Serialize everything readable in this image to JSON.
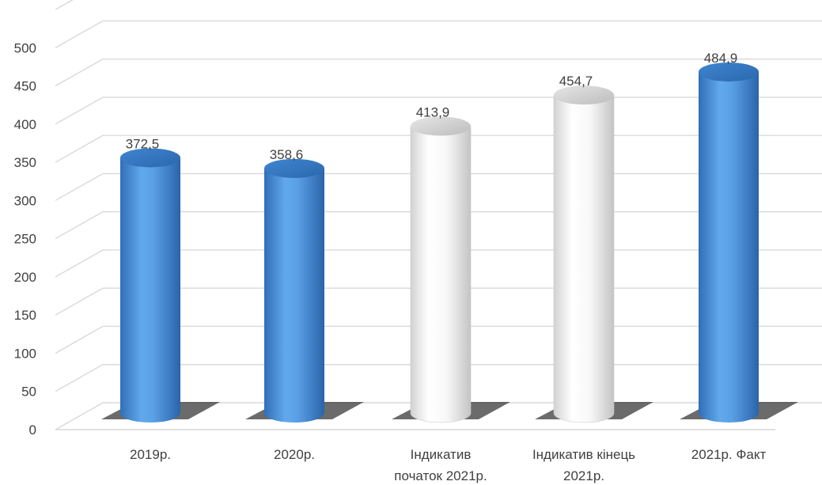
{
  "chart_data": {
    "type": "bar",
    "style": "3d-cylinder",
    "categories": [
      [
        "2019р."
      ],
      [
        "2020р."
      ],
      [
        "Індикатив",
        "початок 2021р."
      ],
      [
        "Індикатив кінець",
        "2021р."
      ],
      [
        "2021р. Факт"
      ]
    ],
    "values": [
      372.5,
      358.6,
      413.9,
      454.7,
      484.9
    ],
    "value_labels": [
      "372,5",
      "358,6",
      "413,9",
      "454,7",
      "484,9"
    ],
    "bar_colors": [
      "#4a8fd8",
      "#4a8fd8",
      "#ffffff",
      "#ffffff",
      "#4a8fd8"
    ],
    "yticks": [
      0,
      50,
      100,
      150,
      200,
      250,
      300,
      350,
      400,
      450,
      500
    ],
    "ylim": [
      0,
      550
    ],
    "grid": true,
    "legend": "none",
    "title": "",
    "xlabel": "",
    "ylabel": ""
  }
}
